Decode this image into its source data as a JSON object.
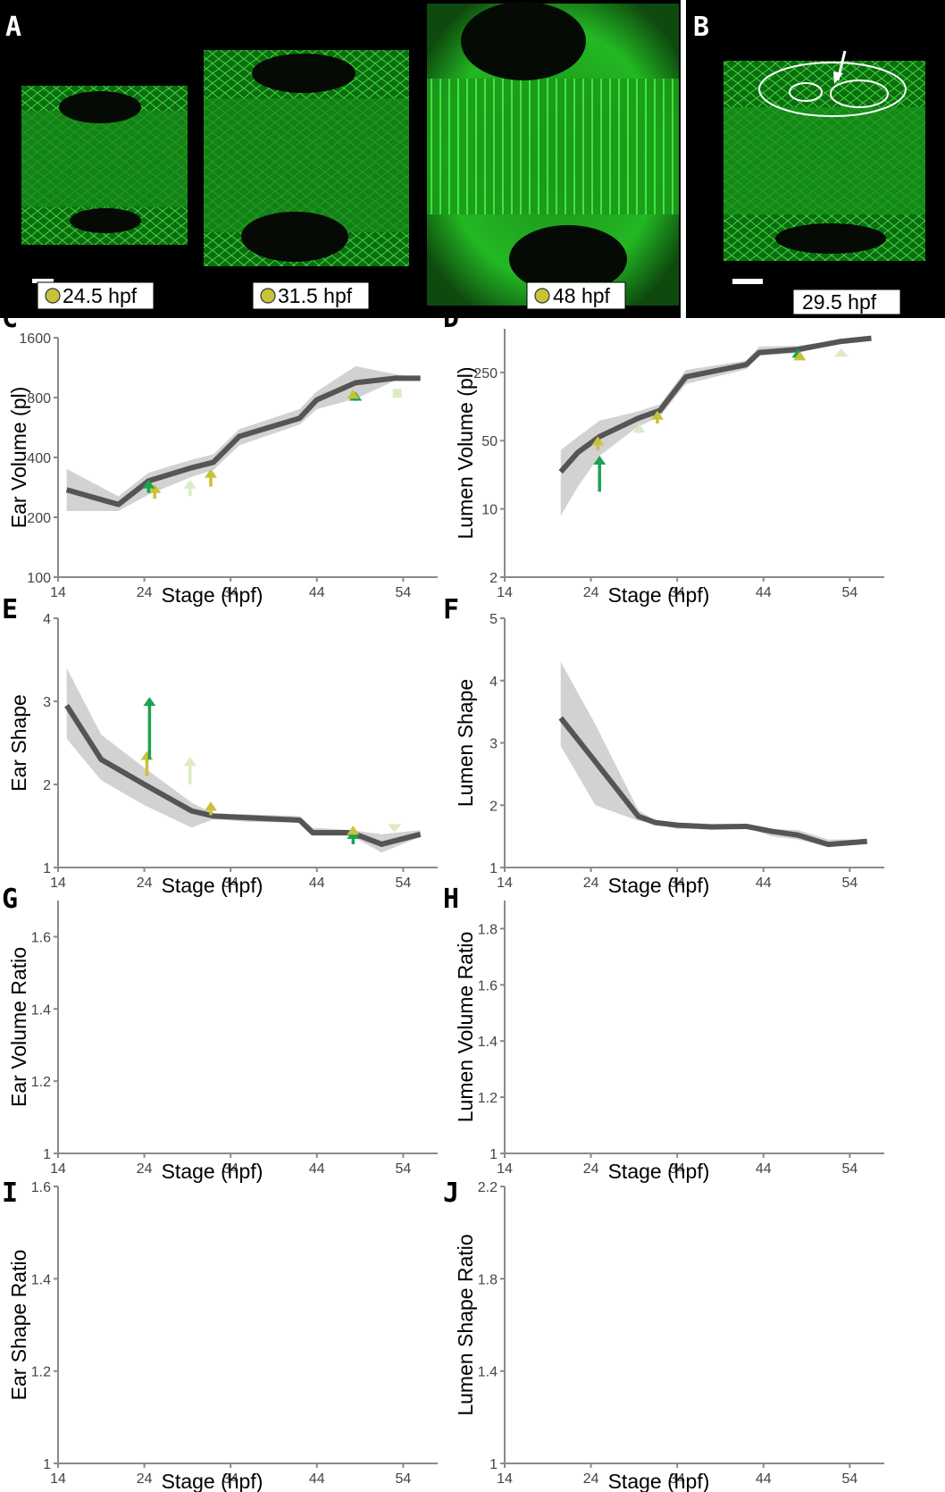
{
  "panel_letters": [
    "A",
    "B",
    "C",
    "D",
    "E",
    "F",
    "G",
    "H",
    "I",
    "J"
  ],
  "images": {
    "panel_a": [
      {
        "stage_label": "24.5 hpf"
      },
      {
        "stage_label": "31.5 hpf"
      },
      {
        "stage_label": "48 hpf"
      }
    ],
    "panel_b": {
      "stage_label": "29.5 hpf"
    }
  },
  "colors": {
    "mean_line": "#555555",
    "band": "#d2d2d2",
    "dot": "#555555",
    "yellow": "#c8c238",
    "dark_green": "#1aa352",
    "light_green": "#86cc55",
    "pale_green": "#dcebc4",
    "axis": "#8a8a8a",
    "microscopy_green": "#2ed22e"
  },
  "chart_data": [
    {
      "id": "C",
      "type": "line",
      "ylabel": "Ear Volume (pl)",
      "xlabel": "Stage (hpf)",
      "yscale": "log",
      "ylim": [
        100,
        1600
      ],
      "yticks": [
        100,
        200,
        400,
        800,
        1600
      ],
      "xlim": [
        14,
        58
      ],
      "xticks": [
        14,
        24,
        34,
        44,
        54
      ],
      "mean": {
        "x": [
          15,
          21,
          24.5,
          29.5,
          32,
          35,
          42,
          44,
          48.5,
          53,
          56
        ],
        "y": [
          275,
          232,
          305,
          355,
          378,
          510,
          630,
          780,
          950,
          1000,
          1000
        ]
      },
      "band_upper": [
        350,
        255,
        335,
        390,
        415,
        555,
        700,
        860,
        1150,
        1050,
        1010
      ],
      "band_lower": [
        215,
        215,
        260,
        320,
        345,
        460,
        585,
        700,
        790,
        970,
        990
      ],
      "arrows": [
        {
          "x": 25.2,
          "y0": 248,
          "y1": 285,
          "color": "yellow"
        },
        {
          "x": 24.5,
          "y0": 265,
          "y1": 300,
          "color": "dark_green"
        },
        {
          "x": 29.3,
          "y0": 255,
          "y1": 300,
          "color": "pale_green"
        },
        {
          "x": 31.7,
          "y0": 285,
          "y1": 340,
          "color": "yellow"
        },
        {
          "x": 48.5,
          "y0": 770,
          "y1": 830,
          "color": "dark_green"
        },
        {
          "x": 48.2,
          "y0": 820,
          "y1": 850,
          "color": "yellow"
        }
      ],
      "markers": [
        {
          "x": 53.3,
          "y": 840,
          "shape": "square",
          "color": "pale_green"
        }
      ]
    },
    {
      "id": "D",
      "type": "line",
      "ylabel": "Lumen Volume (pl)",
      "xlabel": "Stage (hpf)",
      "yscale": "log",
      "ylim": [
        2,
        700
      ],
      "yticks": [
        2,
        10,
        50,
        250
      ],
      "xlim": [
        14,
        58
      ],
      "xticks": [
        14,
        24,
        34,
        44,
        54
      ],
      "mean": {
        "x": [
          20.5,
          22.5,
          25,
          29.5,
          32,
          35,
          42,
          43.5,
          48,
          53,
          56.5
        ],
        "y": [
          24,
          38,
          55,
          85,
          102,
          225,
          300,
          400,
          430,
          520,
          560
        ]
      },
      "band_upper": [
        40,
        55,
        80,
        100,
        118,
        265,
        330,
        460,
        470,
        540,
        570
      ],
      "band_lower": [
        8.5,
        17,
        35,
        70,
        88,
        190,
        270,
        370,
        395,
        505,
        550
      ],
      "arrows": [
        {
          "x": 24.8,
          "y0": 40,
          "y1": 52,
          "color": "yellow"
        },
        {
          "x": 25,
          "y0": 15,
          "y1": 33,
          "color": "dark_green"
        },
        {
          "x": 29.6,
          "y0": 60,
          "y1": 70,
          "color": "pale_green"
        },
        {
          "x": 31.7,
          "y0": 75,
          "y1": 95,
          "color": "yellow"
        },
        {
          "x": 48,
          "y0": 340,
          "y1": 410,
          "color": "dark_green"
        },
        {
          "x": 48.2,
          "y0": 370,
          "y1": 385,
          "color": "yellow"
        }
      ],
      "markers": [
        {
          "x": 53,
          "y": 395,
          "shape": "triangle",
          "color": "pale_green"
        }
      ]
    },
    {
      "id": "E",
      "type": "line",
      "ylabel": "Ear Shape",
      "xlabel": "Stage (hpf)",
      "yscale": "linear",
      "ylim": [
        1,
        4
      ],
      "yticks": [
        1,
        2,
        3,
        4
      ],
      "xlim": [
        14,
        58
      ],
      "xticks": [
        14,
        24,
        34,
        44,
        54
      ],
      "mean": {
        "x": [
          15,
          19,
          24,
          29.5,
          32,
          36,
          42,
          43.5,
          48,
          51.5,
          56
        ],
        "y": [
          2.95,
          2.3,
          2.0,
          1.68,
          1.62,
          1.6,
          1.57,
          1.42,
          1.42,
          1.28,
          1.4
        ]
      },
      "band_upper": [
        3.4,
        2.6,
        2.2,
        1.78,
        1.65,
        1.64,
        1.62,
        1.48,
        1.45,
        1.4,
        1.45
      ],
      "band_lower": [
        2.55,
        2.05,
        1.75,
        1.48,
        1.58,
        1.55,
        1.54,
        1.38,
        1.38,
        1.18,
        1.37
      ],
      "arrows": [
        {
          "x": 24.3,
          "y0": 2.1,
          "y1": 2.37,
          "color": "yellow"
        },
        {
          "x": 24.6,
          "y0": 2.3,
          "y1": 3.02,
          "color": "dark_green"
        },
        {
          "x": 29.3,
          "y0": 2.0,
          "y1": 2.3,
          "color": "pale_green"
        },
        {
          "x": 31.7,
          "y0": 1.63,
          "y1": 1.76,
          "color": "yellow"
        },
        {
          "x": 48.2,
          "y0": 1.28,
          "y1": 1.42,
          "color": "dark_green"
        },
        {
          "x": 48.2,
          "y0": 1.4,
          "y1": 1.47,
          "color": "yellow"
        }
      ],
      "markers": [
        {
          "x": 53,
          "y": 1.48,
          "shape": "triangle-down",
          "color": "pale_green"
        }
      ]
    },
    {
      "id": "F",
      "type": "line",
      "ylabel": "Lumen Shape",
      "xlabel": "Stage (hpf)",
      "yscale": "linear",
      "ylim": [
        1,
        5
      ],
      "yticks": [
        1,
        2,
        3,
        4,
        5
      ],
      "xlim": [
        14,
        58
      ],
      "xticks": [
        14,
        24,
        34,
        44,
        54
      ],
      "mean": {
        "x": [
          20.5,
          24.5,
          29.5,
          31.5,
          34,
          38,
          42,
          45,
          48,
          51.5,
          56
        ],
        "y": [
          3.4,
          2.7,
          1.82,
          1.72,
          1.68,
          1.65,
          1.66,
          1.58,
          1.52,
          1.37,
          1.42
        ]
      },
      "band_upper": [
        4.3,
        3.3,
        1.92,
        1.75,
        1.72,
        1.7,
        1.7,
        1.62,
        1.6,
        1.45,
        1.45
      ],
      "band_lower": [
        2.95,
        2.0,
        1.75,
        1.7,
        1.62,
        1.62,
        1.64,
        1.5,
        1.45,
        1.33,
        1.4
      ]
    },
    {
      "id": "G",
      "type": "scatter",
      "ylabel": "Ear Volume Ratio",
      "xlabel": "Stage (hpf)",
      "ylim": [
        1,
        1.7
      ],
      "yticks": [
        1,
        1.2,
        1.4,
        1.6
      ],
      "xlim": [
        14,
        58
      ],
      "xticks": [
        14,
        24,
        34,
        44,
        54
      ]
    },
    {
      "id": "H",
      "type": "scatter",
      "ylabel": "Lumen Volume Ratio",
      "xlabel": "Stage (hpf)",
      "ylim": [
        1,
        1.9
      ],
      "yticks": [
        1,
        1.2,
        1.4,
        1.6,
        1.8
      ],
      "xlim": [
        14,
        58
      ],
      "xticks": [
        14,
        24,
        34,
        44,
        54
      ]
    },
    {
      "id": "I",
      "type": "scatter",
      "ylabel": "Ear Shape Ratio",
      "xlabel": "Stage (hpf)",
      "ylim": [
        1,
        1.6
      ],
      "yticks": [
        1,
        1.2,
        1.4,
        1.6
      ],
      "xlim": [
        14,
        58
      ],
      "xticks": [
        14,
        24,
        34,
        44,
        54
      ]
    },
    {
      "id": "J",
      "type": "scatter",
      "ylabel": "Lumen Shape Ratio",
      "xlabel": "Stage (hpf)",
      "ylim": [
        1,
        2.2
      ],
      "yticks": [
        1,
        1.4,
        1.8,
        2.2
      ],
      "xlim": [
        14,
        58
      ],
      "xticks": [
        14,
        24,
        34,
        44,
        54
      ]
    }
  ]
}
